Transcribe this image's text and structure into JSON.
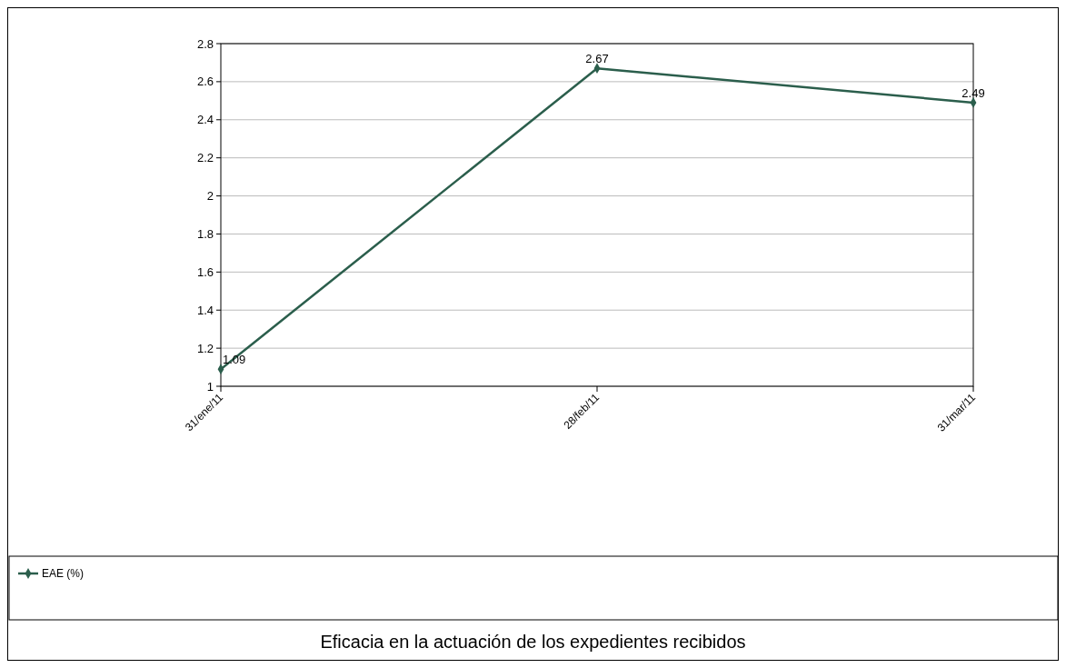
{
  "chart_data": {
    "type": "line",
    "title": "Eficacia en la actuación de los expedientes recibidos",
    "categories": [
      "31/ene/11",
      "28/feb/11",
      "31/mar/11"
    ],
    "series": [
      {
        "name": "EAE (%)",
        "color": "#2b5e4c",
        "values": [
          1.09,
          2.67,
          2.49
        ]
      }
    ],
    "ylim": [
      1,
      2.8
    ],
    "yticks": [
      1,
      1.2,
      1.4,
      1.6,
      1.8,
      2,
      2.2,
      2.4,
      2.6,
      2.8
    ],
    "grid": "y",
    "legend": "bottom",
    "marker": "diamond",
    "line_style": "solid",
    "data_labels": true
  }
}
